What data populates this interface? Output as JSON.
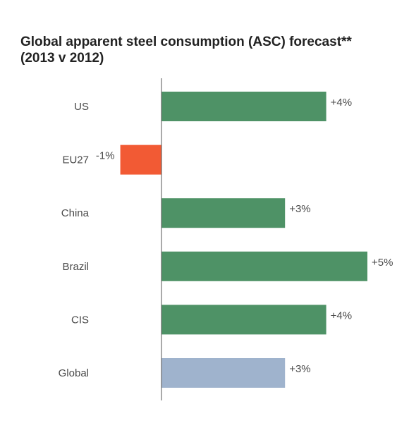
{
  "chart_data": {
    "type": "bar",
    "orientation": "horizontal",
    "title": "Global apparent steel consumption (ASC) forecast**",
    "subtitle": "(2013 v 2012)",
    "xlabel": "",
    "ylabel": "",
    "categories": [
      "US",
      "EU27",
      "China",
      "Brazil",
      "CIS",
      "Global"
    ],
    "values": [
      4,
      -1,
      3,
      5,
      4,
      3
    ],
    "data_labels": [
      "+4%",
      "-1%",
      "+3%",
      "+5%",
      "+4%",
      "+3%"
    ],
    "unit": "%",
    "xlim": [
      -1,
      5
    ],
    "grid": false,
    "legend": "none",
    "colors": {
      "positive": "#4e9266",
      "negative": "#f25a34",
      "global": "#9fb3cd",
      "axis": "#555555"
    }
  }
}
